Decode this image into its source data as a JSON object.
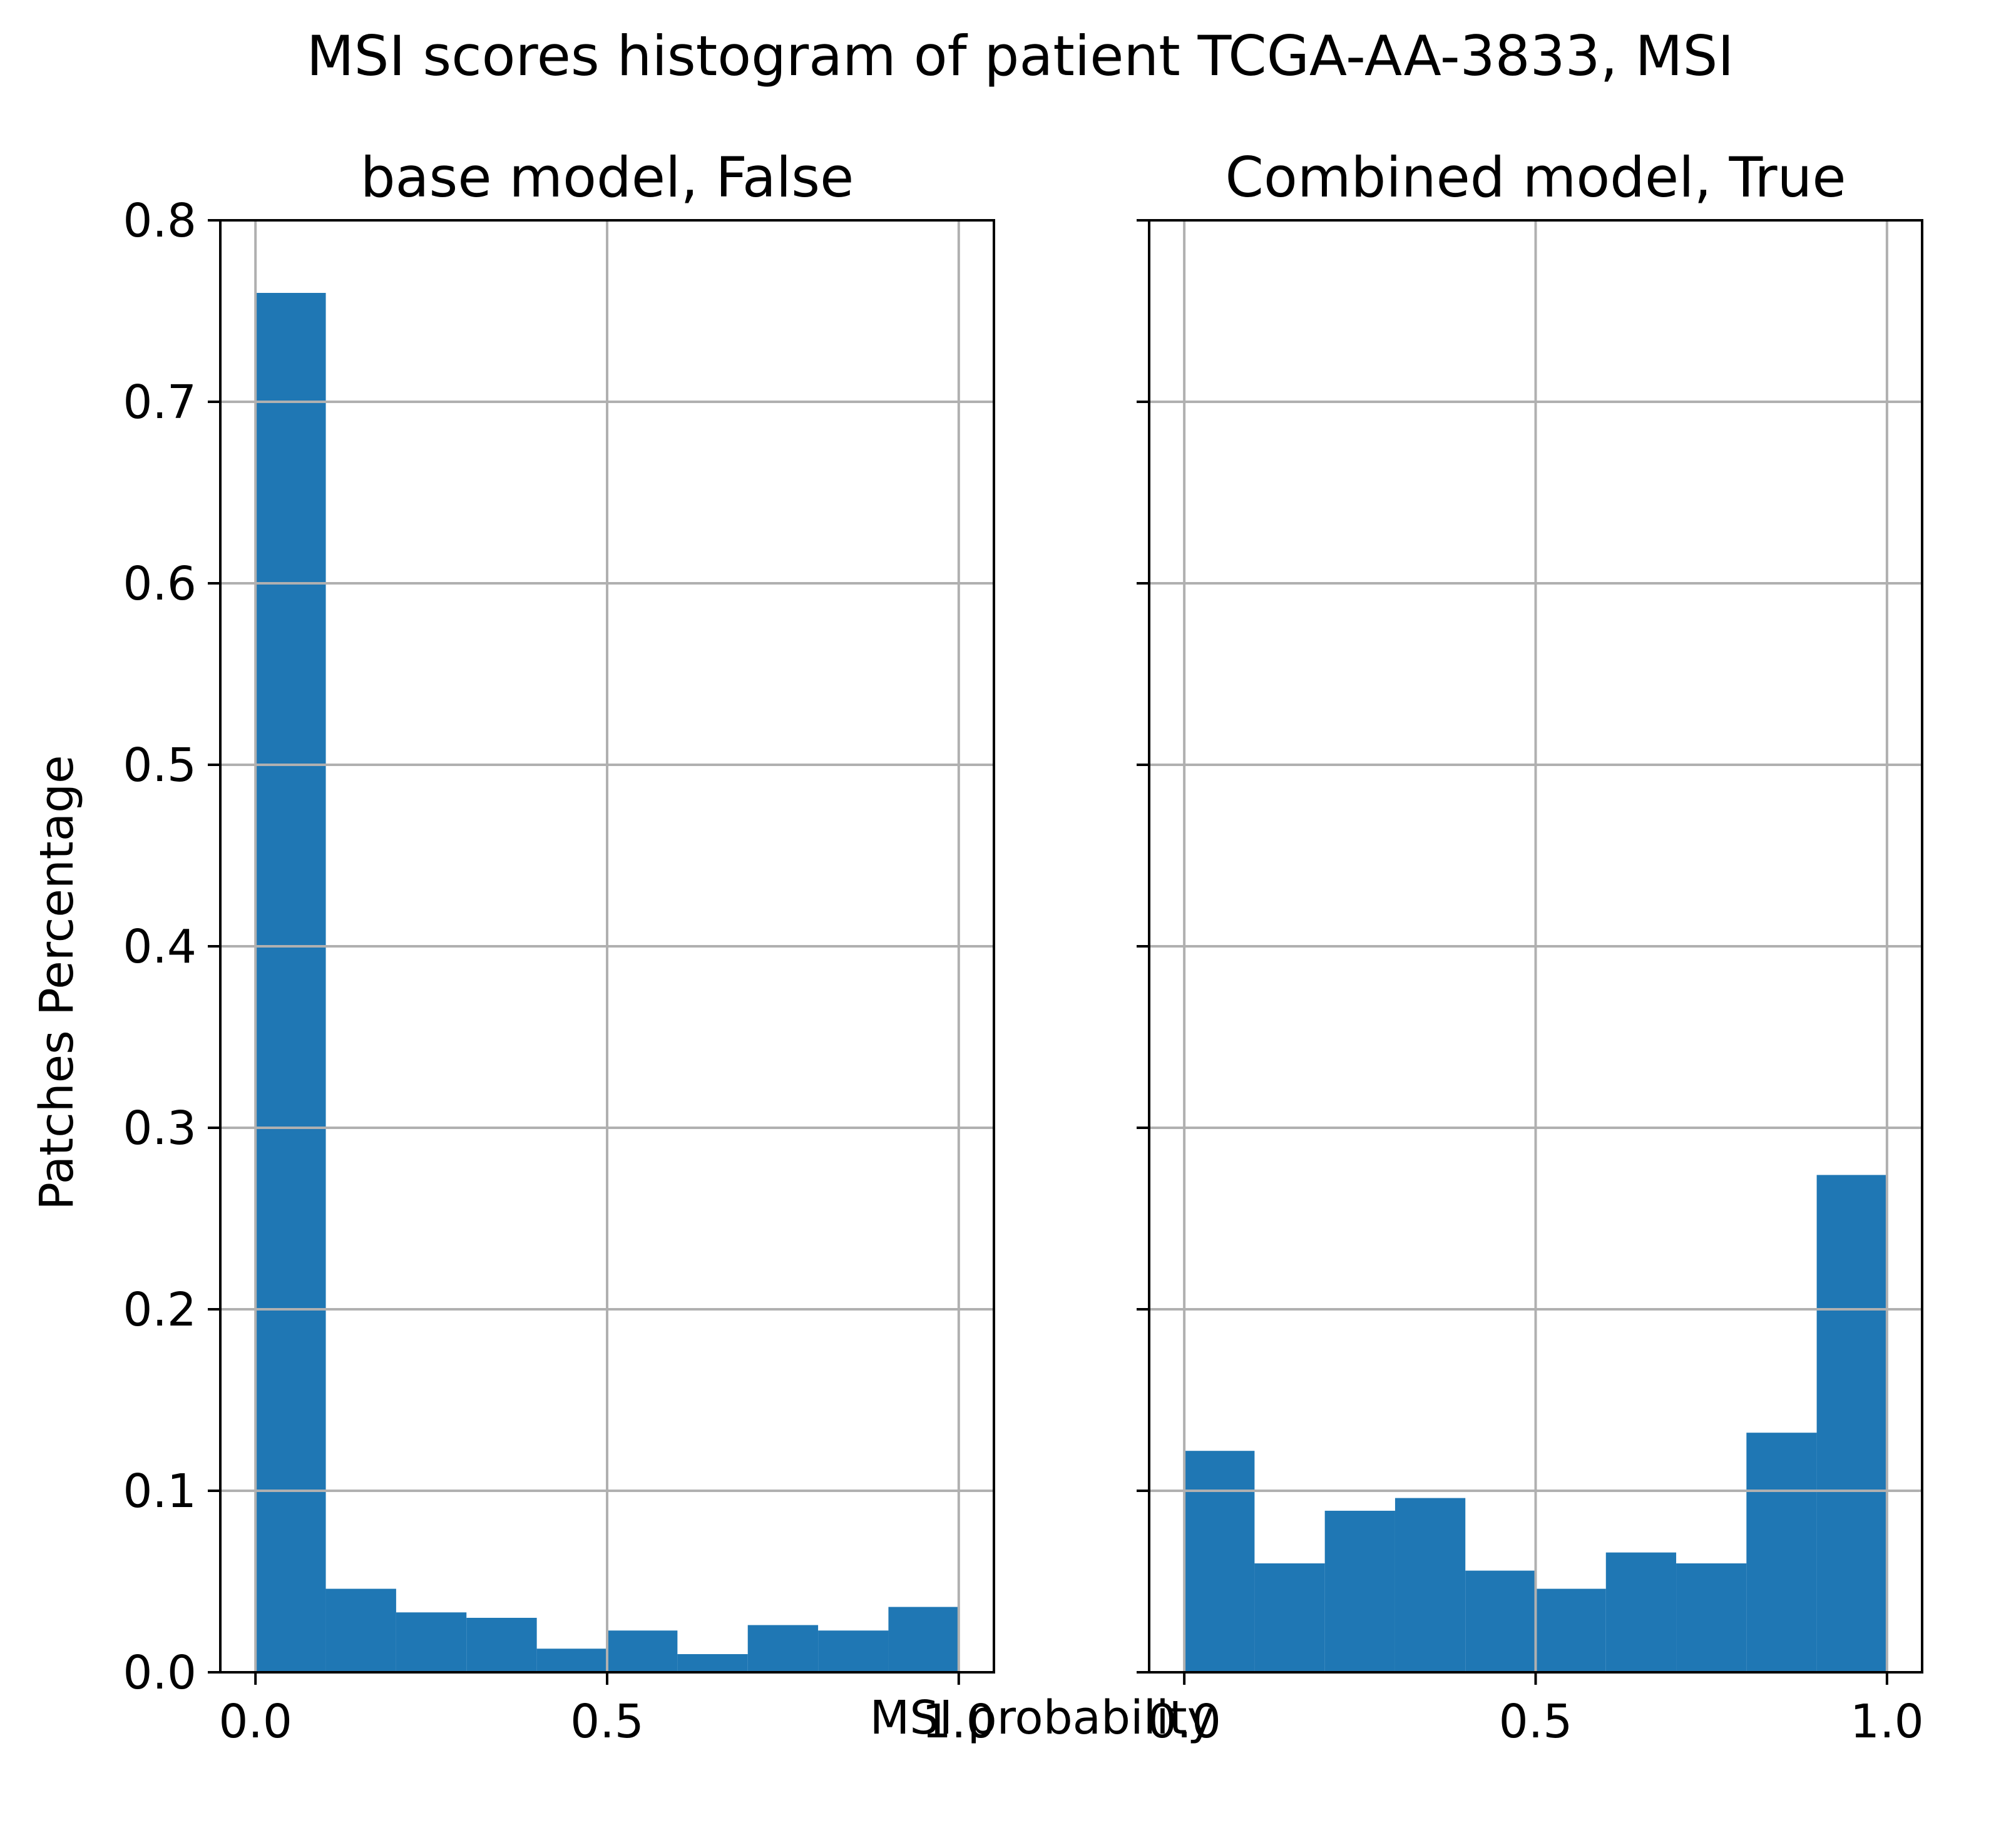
{
  "figure": {
    "suptitle": "MSI scores histogram of patient TCGA-AA-3833, MSI",
    "xlabel": "MSI probability",
    "ylabel": "Patches Percentage"
  },
  "chart_data": [
    {
      "type": "bar",
      "title": "base model, False",
      "xlabel": "MSI probability",
      "ylabel": "Patches Percentage",
      "bin_edges": [
        0.0,
        0.1,
        0.2,
        0.3,
        0.4,
        0.5,
        0.6,
        0.7,
        0.8,
        0.9,
        1.0
      ],
      "values": [
        0.76,
        0.046,
        0.033,
        0.03,
        0.013,
        0.023,
        0.01,
        0.026,
        0.023,
        0.036
      ],
      "xlim": [
        -0.05,
        1.05
      ],
      "ylim": [
        0.0,
        0.8
      ],
      "xticks": [
        0.0,
        0.5,
        1.0
      ],
      "xticklabels": [
        "0.0",
        "0.5",
        "1.0"
      ],
      "yticks": [
        0.0,
        0.1,
        0.2,
        0.3,
        0.4,
        0.5,
        0.6,
        0.7,
        0.8
      ],
      "yticklabels": [
        "0.0",
        "0.1",
        "0.2",
        "0.3",
        "0.4",
        "0.5",
        "0.6",
        "0.7",
        "0.8"
      ],
      "grid": true,
      "color": "#1f77b4"
    },
    {
      "type": "bar",
      "title": "Combined model, True",
      "xlabel": "MSI probability",
      "ylabel": "",
      "bin_edges": [
        0.0,
        0.1,
        0.2,
        0.3,
        0.4,
        0.5,
        0.6,
        0.7,
        0.8,
        0.9,
        1.0
      ],
      "values": [
        0.122,
        0.06,
        0.089,
        0.096,
        0.056,
        0.046,
        0.066,
        0.06,
        0.132,
        0.274
      ],
      "xlim": [
        -0.05,
        1.05
      ],
      "ylim": [
        0.0,
        0.8
      ],
      "xticks": [
        0.0,
        0.5,
        1.0
      ],
      "xticklabels": [
        "0.0",
        "0.5",
        "1.0"
      ],
      "yticks": [
        0.0,
        0.1,
        0.2,
        0.3,
        0.4,
        0.5,
        0.6,
        0.7,
        0.8
      ],
      "yticklabels": [],
      "grid": true,
      "color": "#1f77b4"
    }
  ],
  "colors": {
    "bar": "#1f77b4",
    "grid": "#b0b0b0",
    "axis": "#000000",
    "background": "#ffffff"
  }
}
